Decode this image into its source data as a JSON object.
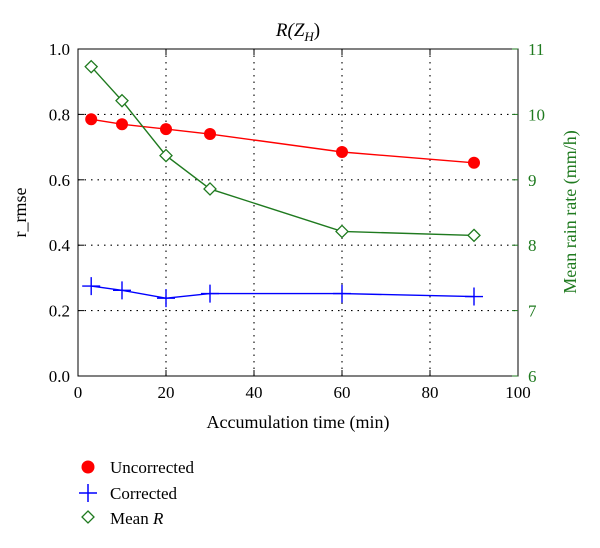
{
  "chart_data": {
    "type": "line",
    "title": "R(Z_H)",
    "title_parts": {
      "main": "R(Z",
      "sub": "H",
      "close": ")"
    },
    "xlabel": "Accumulation time (min)",
    "ylabel": "r_rmse",
    "y2label": "Mean rain rate (mm/h)",
    "xlim": [
      0,
      100
    ],
    "ylim": [
      0,
      1
    ],
    "y2lim": [
      6,
      11
    ],
    "x_ticks": [
      "0",
      "20",
      "40",
      "60",
      "80",
      "100"
    ],
    "y_ticks": [
      "0.0",
      "0.2",
      "0.4",
      "0.6",
      "0.8",
      "1.0"
    ],
    "y2_ticks": [
      "6",
      "7",
      "8",
      "9",
      "10",
      "11"
    ],
    "grid": true,
    "legend_position": "bottom-left",
    "series": [
      {
        "name": "Uncorrected",
        "axis": "left",
        "color": "#ff0000",
        "marker": "circle",
        "x": [
          3,
          10,
          20,
          30,
          60,
          90
        ],
        "values": [
          0.785,
          0.77,
          0.755,
          0.74,
          0.685,
          0.652
        ]
      },
      {
        "name": "Corrected",
        "axis": "left",
        "color": "#0000ff",
        "marker": "plus",
        "x": [
          3,
          10,
          20,
          30,
          60,
          90
        ],
        "values": [
          0.275,
          0.262,
          0.238,
          0.252,
          0.252,
          0.243
        ]
      },
      {
        "name": "Mean R",
        "name_parts": {
          "main": "Mean ",
          "italic": "R"
        },
        "axis": "right",
        "color": "#1f7a1f",
        "marker": "diamond",
        "x": [
          3,
          10,
          20,
          30,
          60,
          90
        ],
        "values": [
          10.73,
          10.21,
          9.37,
          8.86,
          8.21,
          8.15
        ]
      }
    ]
  }
}
